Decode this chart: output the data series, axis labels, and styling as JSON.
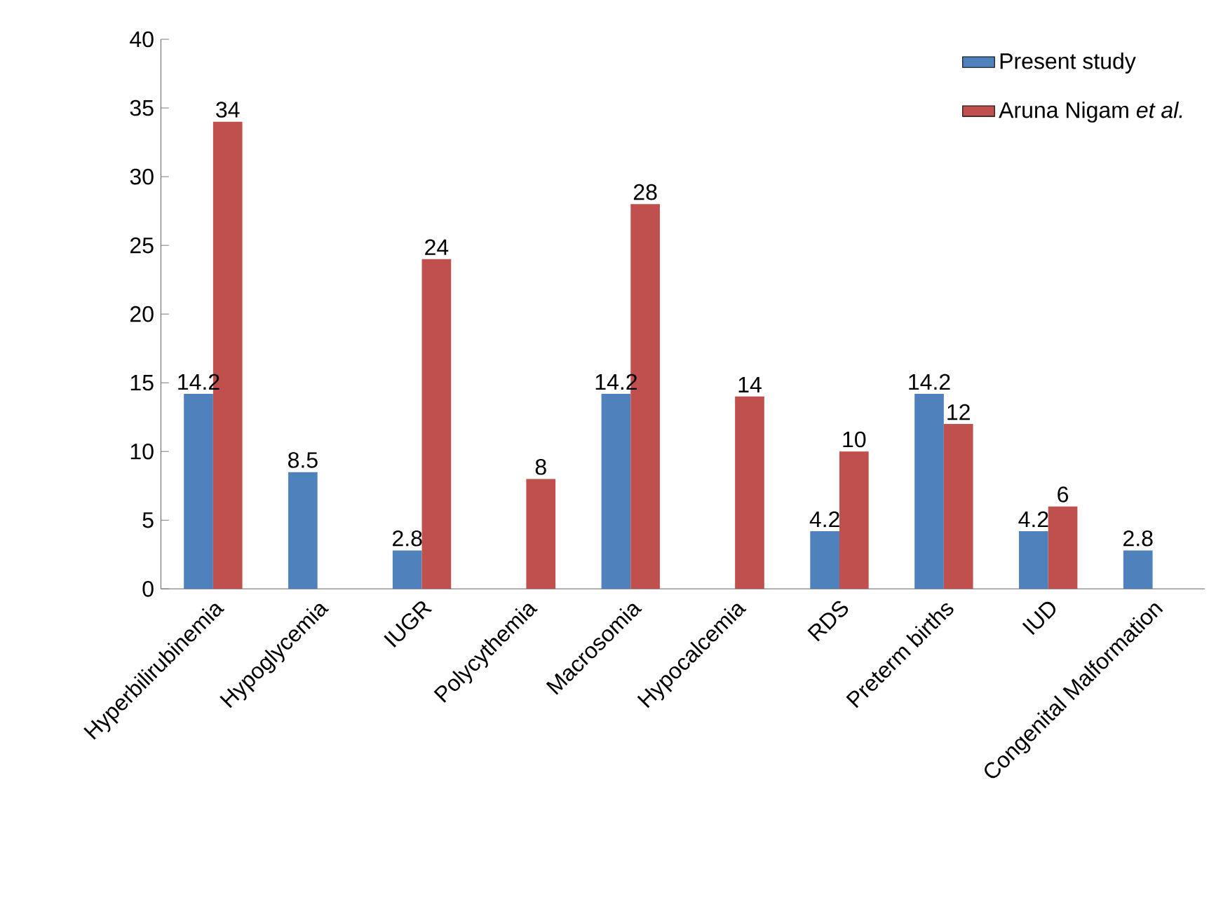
{
  "chart_data": {
    "type": "bar",
    "categories": [
      "Hyperbilirubinemia",
      "Hypoglycemia",
      "IUGR",
      "Polycythemia",
      "Macrosomia",
      "Hypocalcemia",
      "RDS",
      "Preterm births",
      "IUD",
      "Congenital Malformation"
    ],
    "series": [
      {
        "name": "Present study",
        "color": "#4f81bd",
        "values": [
          14.2,
          8.5,
          2.8,
          null,
          14.2,
          null,
          4.2,
          14.2,
          4.2,
          2.8
        ]
      },
      {
        "name": "Aruna Nigam *et al.*",
        "color": "#c0504d",
        "values": [
          34,
          null,
          24,
          8,
          28,
          14,
          10,
          12,
          6,
          null
        ]
      }
    ],
    "ylim": [
      0,
      40
    ],
    "yticks": [
      0,
      5,
      10,
      15,
      20,
      25,
      30,
      35,
      40
    ],
    "grid": false,
    "legend": "top right",
    "data_labels": true
  }
}
